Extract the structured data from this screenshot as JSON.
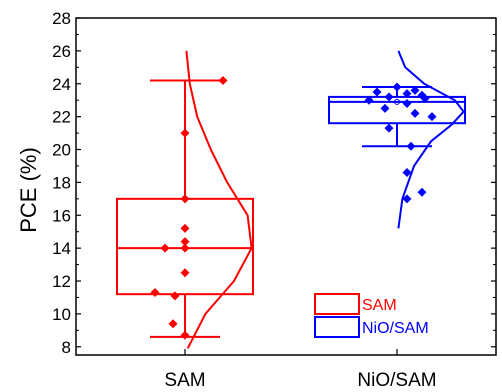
{
  "chart_data": {
    "type": "box",
    "ylabel": "PCE (%)",
    "xlabel": "",
    "ylim": [
      7.5,
      28
    ],
    "yticks": [
      8,
      10,
      12,
      14,
      16,
      18,
      20,
      22,
      24,
      26,
      28
    ],
    "categories": [
      "SAM",
      "NiO/SAM"
    ],
    "legend_position": "bottom-right",
    "series": [
      {
        "name": "SAM",
        "color": "#ff0000",
        "box": {
          "whisker_low": 8.6,
          "q1": 11.2,
          "median": 14.0,
          "q3": 17.0,
          "whisker_high": 24.2,
          "mean": 14.4
        },
        "points": [
          24.2,
          21.0,
          17.0,
          15.2,
          14.4,
          14.0,
          14.0,
          12.5,
          11.3,
          11.1,
          9.4,
          8.7
        ],
        "distribution": {
          "x": [
            7.9,
            10,
            12,
            14,
            16,
            18,
            20,
            22,
            24,
            26
          ],
          "density": [
            0.04,
            0.3,
            0.72,
            0.98,
            0.92,
            0.62,
            0.38,
            0.18,
            0.07,
            0.02
          ]
        }
      },
      {
        "name": "NiO/SAM",
        "color": "#0000ff",
        "box": {
          "whisker_low": 20.2,
          "q1": 21.6,
          "median": 22.9,
          "q3": 23.2,
          "whisker_high": 23.8,
          "mean": 22.9
        },
        "points": [
          23.8,
          23.6,
          23.5,
          23.4,
          23.3,
          23.2,
          23.1,
          23.0,
          22.8,
          22.5,
          22.2,
          22.0,
          21.3,
          20.2,
          18.6,
          17.4,
          17.0
        ],
        "distribution": {
          "x": [
            15.2,
            17,
            19,
            20.5,
            21.5,
            22.3,
            23,
            24,
            25,
            26
          ],
          "density": [
            0.02,
            0.08,
            0.25,
            0.5,
            0.8,
            0.98,
            0.85,
            0.4,
            0.12,
            0.02
          ]
        }
      }
    ]
  }
}
